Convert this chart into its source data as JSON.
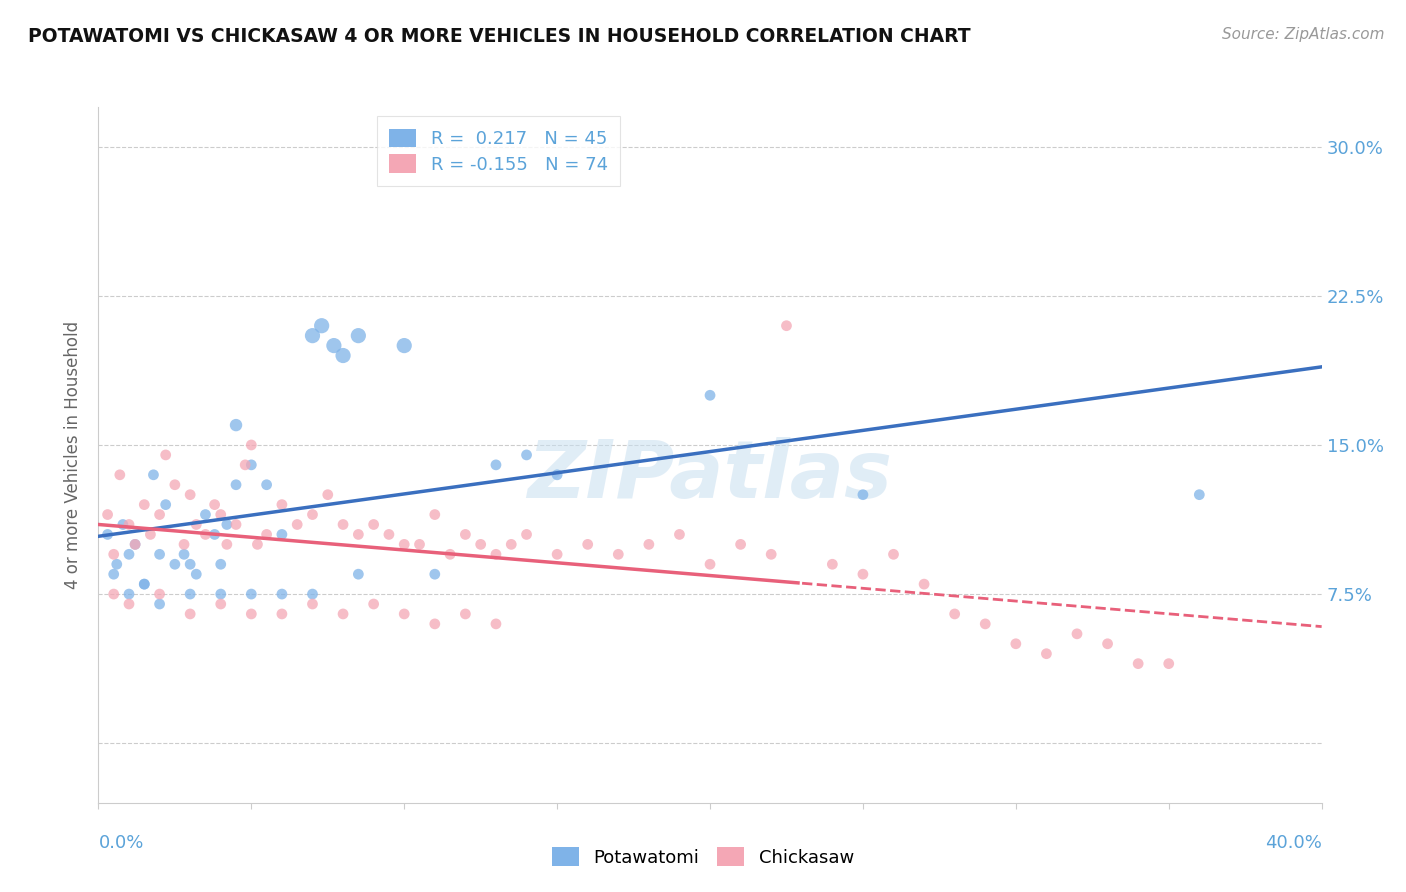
{
  "title": "POTAWATOMI VS CHICKASAW 4 OR MORE VEHICLES IN HOUSEHOLD CORRELATION CHART",
  "source": "Source: ZipAtlas.com",
  "ylabel": "4 or more Vehicles in Household",
  "xlim": [
    0.0,
    40.0
  ],
  "ylim": [
    -3.0,
    32.0
  ],
  "yticks": [
    0.0,
    7.5,
    15.0,
    22.5,
    30.0
  ],
  "ytick_labels": [
    "",
    "7.5%",
    "15.0%",
    "22.5%",
    "30.0%"
  ],
  "watermark": "ZIPatlas",
  "legend1_r": "0.217",
  "legend1_n": "45",
  "legend2_r": "-0.155",
  "legend2_n": "74",
  "blue_color": "#7FB3E8",
  "pink_color": "#F4A7B5",
  "blue_line_color": "#3A6FBF",
  "pink_line_color": "#E8607A",
  "label_color": "#5BA3D9",
  "potawatomi_points": [
    [
      0.3,
      10.5
    ],
    [
      0.5,
      8.5
    ],
    [
      0.6,
      9.0
    ],
    [
      0.8,
      11.0
    ],
    [
      1.0,
      9.5
    ],
    [
      1.2,
      10.0
    ],
    [
      1.5,
      8.0
    ],
    [
      1.8,
      13.5
    ],
    [
      2.0,
      9.5
    ],
    [
      2.2,
      12.0
    ],
    [
      2.5,
      9.0
    ],
    [
      2.8,
      9.5
    ],
    [
      3.0,
      9.0
    ],
    [
      3.2,
      8.5
    ],
    [
      3.5,
      11.5
    ],
    [
      3.8,
      10.5
    ],
    [
      4.0,
      9.0
    ],
    [
      4.2,
      11.0
    ],
    [
      4.5,
      13.0
    ],
    [
      5.0,
      14.0
    ],
    [
      5.5,
      13.0
    ],
    [
      6.0,
      10.5
    ],
    [
      7.0,
      20.5
    ],
    [
      7.3,
      21.0
    ],
    [
      7.7,
      20.0
    ],
    [
      8.0,
      19.5
    ],
    [
      8.5,
      20.5
    ],
    [
      10.0,
      20.0
    ],
    [
      11.0,
      8.5
    ],
    [
      13.0,
      14.0
    ],
    [
      14.0,
      14.5
    ],
    [
      15.0,
      13.5
    ],
    [
      20.0,
      17.5
    ],
    [
      25.0,
      12.5
    ],
    [
      36.0,
      12.5
    ],
    [
      1.0,
      7.5
    ],
    [
      1.5,
      8.0
    ],
    [
      2.0,
      7.0
    ],
    [
      3.0,
      7.5
    ],
    [
      4.0,
      7.5
    ],
    [
      5.0,
      7.5
    ],
    [
      6.0,
      7.5
    ],
    [
      7.0,
      7.5
    ],
    [
      8.5,
      8.5
    ],
    [
      4.5,
      16.0
    ]
  ],
  "chickasaw_points": [
    [
      0.3,
      11.5
    ],
    [
      0.5,
      9.5
    ],
    [
      0.7,
      13.5
    ],
    [
      1.0,
      11.0
    ],
    [
      1.2,
      10.0
    ],
    [
      1.5,
      12.0
    ],
    [
      1.7,
      10.5
    ],
    [
      2.0,
      11.5
    ],
    [
      2.2,
      14.5
    ],
    [
      2.5,
      13.0
    ],
    [
      2.8,
      10.0
    ],
    [
      3.0,
      12.5
    ],
    [
      3.2,
      11.0
    ],
    [
      3.5,
      10.5
    ],
    [
      3.8,
      12.0
    ],
    [
      4.0,
      11.5
    ],
    [
      4.2,
      10.0
    ],
    [
      4.5,
      11.0
    ],
    [
      4.8,
      14.0
    ],
    [
      5.0,
      15.0
    ],
    [
      5.2,
      10.0
    ],
    [
      5.5,
      10.5
    ],
    [
      6.0,
      12.0
    ],
    [
      6.5,
      11.0
    ],
    [
      7.0,
      11.5
    ],
    [
      7.5,
      12.5
    ],
    [
      8.0,
      11.0
    ],
    [
      8.5,
      10.5
    ],
    [
      9.0,
      11.0
    ],
    [
      9.5,
      10.5
    ],
    [
      10.0,
      10.0
    ],
    [
      10.5,
      10.0
    ],
    [
      11.0,
      11.5
    ],
    [
      11.5,
      9.5
    ],
    [
      12.0,
      10.5
    ],
    [
      12.5,
      10.0
    ],
    [
      13.0,
      9.5
    ],
    [
      13.5,
      10.0
    ],
    [
      14.0,
      10.5
    ],
    [
      15.0,
      9.5
    ],
    [
      16.0,
      10.0
    ],
    [
      17.0,
      9.5
    ],
    [
      18.0,
      10.0
    ],
    [
      19.0,
      10.5
    ],
    [
      20.0,
      9.0
    ],
    [
      21.0,
      10.0
    ],
    [
      22.0,
      9.5
    ],
    [
      22.5,
      21.0
    ],
    [
      24.0,
      9.0
    ],
    [
      25.0,
      8.5
    ],
    [
      26.0,
      9.5
    ],
    [
      27.0,
      8.0
    ],
    [
      28.0,
      6.5
    ],
    [
      29.0,
      6.0
    ],
    [
      30.0,
      5.0
    ],
    [
      31.0,
      4.5
    ],
    [
      32.0,
      5.5
    ],
    [
      33.0,
      5.0
    ],
    [
      34.0,
      4.0
    ],
    [
      35.0,
      4.0
    ],
    [
      0.5,
      7.5
    ],
    [
      1.0,
      7.0
    ],
    [
      2.0,
      7.5
    ],
    [
      3.0,
      6.5
    ],
    [
      4.0,
      7.0
    ],
    [
      5.0,
      6.5
    ],
    [
      6.0,
      6.5
    ],
    [
      7.0,
      7.0
    ],
    [
      8.0,
      6.5
    ],
    [
      9.0,
      7.0
    ],
    [
      10.0,
      6.5
    ],
    [
      11.0,
      6.0
    ],
    [
      12.0,
      6.5
    ],
    [
      13.0,
      6.0
    ]
  ],
  "potawatomi_sizes": [
    60,
    60,
    60,
    60,
    60,
    60,
    60,
    60,
    60,
    60,
    60,
    60,
    60,
    60,
    60,
    60,
    60,
    60,
    60,
    60,
    60,
    60,
    120,
    120,
    120,
    120,
    120,
    120,
    60,
    60,
    60,
    60,
    60,
    60,
    60,
    60,
    60,
    60,
    60,
    60,
    60,
    60,
    60,
    60,
    80
  ],
  "chickasaw_sizes": [
    60,
    60,
    60,
    60,
    60,
    60,
    60,
    60,
    60,
    60,
    60,
    60,
    60,
    60,
    60,
    60,
    60,
    60,
    60,
    60,
    60,
    60,
    60,
    60,
    60,
    60,
    60,
    60,
    60,
    60,
    60,
    60,
    60,
    60,
    60,
    60,
    60,
    60,
    60,
    60,
    60,
    60,
    60,
    60,
    60,
    60,
    60,
    60,
    60,
    60,
    60,
    60,
    60,
    60,
    60,
    60,
    60,
    60,
    60,
    60,
    60,
    60,
    60,
    60,
    60,
    60,
    60,
    60,
    60,
    60,
    60,
    60,
    60,
    60
  ]
}
